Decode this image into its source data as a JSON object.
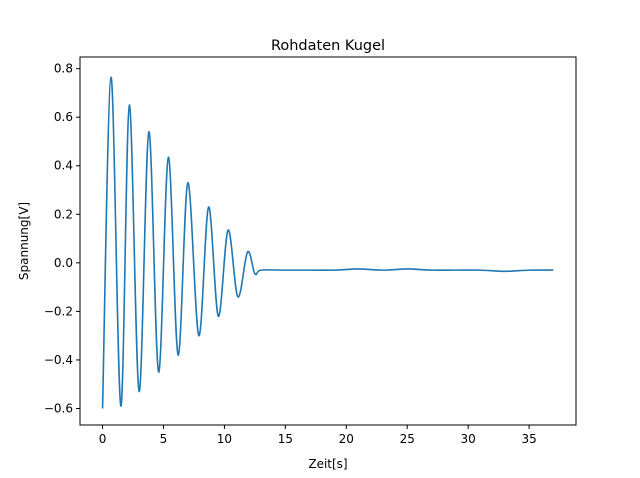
{
  "chart_data": {
    "type": "line",
    "title": "Rohdaten Kugel",
    "xlabel": "Zeit[s]",
    "ylabel": "Spannung[V]",
    "xlim": [
      -1.85,
      38.85
    ],
    "ylim": [
      -0.668,
      0.848
    ],
    "xticks": [
      0,
      5,
      10,
      15,
      20,
      25,
      30,
      35
    ],
    "xtick_labels": [
      "0",
      "5",
      "10",
      "15",
      "20",
      "25",
      "30",
      "35"
    ],
    "yticks": [
      -0.6,
      -0.4,
      -0.2,
      0.0,
      0.2,
      0.4,
      0.6,
      0.8
    ],
    "ytick_labels": [
      "−0.6",
      "−0.4",
      "−0.2",
      "0.0",
      "0.2",
      "0.4",
      "0.6",
      "0.8"
    ],
    "grid": false,
    "legend": "none",
    "series": [
      {
        "color": "#1f77b4",
        "x": [
          0.0,
          0.7,
          1.5,
          2.2,
          3.0,
          3.8,
          4.6,
          5.4,
          6.2,
          7.0,
          7.9,
          8.7,
          9.5,
          10.3,
          11.1,
          11.9,
          12.5,
          13.0,
          15.0,
          17.0,
          19.0,
          21.0,
          23.0,
          25.0,
          27.0,
          29.0,
          31.0,
          33.0,
          35.0,
          37.0
        ],
        "y": [
          -0.6,
          0.765,
          -0.59,
          0.65,
          -0.53,
          0.54,
          -0.45,
          0.435,
          -0.38,
          0.33,
          -0.3,
          0.23,
          -0.22,
          0.135,
          -0.14,
          0.045,
          -0.045,
          -0.03,
          -0.03,
          -0.03,
          -0.03,
          -0.025,
          -0.03,
          -0.025,
          -0.03,
          -0.03,
          -0.03,
          -0.035,
          -0.03,
          -0.03
        ]
      }
    ]
  }
}
